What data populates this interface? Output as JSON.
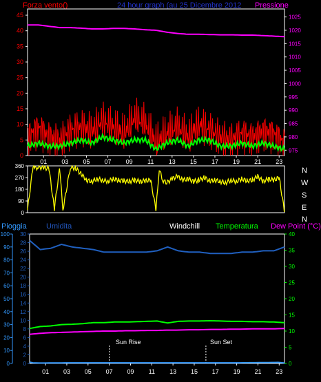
{
  "header": {
    "left": "Forza vento()",
    "center": "24 hour graph (au   25 Dicembre 2012",
    "right": "Pressione"
  },
  "legend": {
    "pioggia": "Pioggia",
    "umidita": "Umidita",
    "windchill": "Windchill",
    "temperatura": "Temperatura",
    "dewpoint": "Dew Point (°C)"
  },
  "compass": [
    "N",
    "W",
    "S",
    "E",
    "N"
  ],
  "annotations": {
    "sunrise": "Sun Rise",
    "sunset": "Sun Set"
  },
  "colors": {
    "wind": "#ff0000",
    "wind_avg": "#00ff00",
    "pressure": "#ff00ff",
    "direction": "#ffff00",
    "humidity": "#2060c0",
    "temperature": "#00ff00",
    "dewpoint": "#ff00ff",
    "rain": "#3399ff",
    "axis_text_left": "#ff0000",
    "axis_text_right": "#ff00ff",
    "frame": "#ffffff"
  },
  "chart_data": [
    {
      "type": "line",
      "id": "wind",
      "x_ticks": [
        "01",
        "03",
        "05",
        "07",
        "09",
        "11",
        "13",
        "15",
        "17",
        "19",
        "21",
        "23"
      ],
      "y_left_ticks": [
        "0",
        "5",
        "10",
        "15",
        "20",
        "25",
        "30",
        "35",
        "40",
        "45"
      ],
      "y_left_lim": [
        0,
        47
      ],
      "y_right_ticks": [
        "975",
        "980",
        "985",
        "990",
        "995",
        "1000",
        "1005",
        "1010",
        "1015",
        "1020",
        "1025"
      ],
      "y_right_lim": [
        973,
        1028
      ],
      "x_range_hours": [
        0,
        24
      ],
      "series": [
        {
          "name": "Forza vento()",
          "axis": "left",
          "hours": [
            0,
            1,
            2,
            3,
            4,
            5,
            6,
            7,
            8,
            9,
            10,
            11,
            12,
            13,
            14,
            15,
            16,
            17,
            18,
            19,
            20,
            21,
            22,
            23,
            24
          ],
          "values": [
            6,
            9,
            6,
            5,
            8,
            9,
            8,
            11,
            9,
            7,
            12,
            10,
            4,
            7,
            9,
            6,
            10,
            8,
            6,
            5,
            7,
            6,
            8,
            7,
            4
          ]
        },
        {
          "name": "",
          "axis": "left",
          "hours": [
            0,
            1,
            2,
            3,
            4,
            5,
            6,
            7,
            8,
            9,
            10,
            11,
            12,
            13,
            14,
            15,
            16,
            17,
            18,
            19,
            20,
            21,
            22,
            23,
            24
          ],
          "values": [
            3,
            4,
            3,
            3,
            4,
            5,
            4,
            6,
            5,
            4,
            5,
            5,
            2,
            4,
            5,
            3,
            5,
            5,
            3,
            3,
            4,
            3,
            4,
            3,
            2
          ]
        },
        {
          "name": "Pressione",
          "axis": "right",
          "hours": [
            0,
            1,
            2,
            3,
            4,
            5,
            6,
            7,
            8,
            9,
            10,
            11,
            12,
            13,
            14,
            15,
            16,
            17,
            18,
            19,
            20,
            21,
            22,
            23,
            24
          ],
          "values": [
            1022,
            1022,
            1021.5,
            1021,
            1021,
            1020.8,
            1020.5,
            1020.5,
            1020.7,
            1020.7,
            1020.5,
            1020.2,
            1020,
            1019.3,
            1018.8,
            1018.5,
            1018.5,
            1018.4,
            1018.3,
            1018.3,
            1018.2,
            1018.2,
            1018,
            1017.8,
            1017.6
          ]
        }
      ]
    },
    {
      "type": "line",
      "id": "direction",
      "x_range_hours": [
        0,
        24
      ],
      "y_ticks": [
        "0",
        "90",
        "180",
        "270",
        "360"
      ],
      "y_lim": [
        0,
        360
      ],
      "series": [
        {
          "name": "",
          "hours": [
            0,
            0.5,
            0.7,
            1,
            1.5,
            2,
            2.5,
            3,
            3.3,
            4,
            4.5,
            5,
            5.5,
            6,
            6.5,
            7,
            7.5,
            8,
            8.5,
            9,
            9.5,
            10,
            10.5,
            11,
            11.5,
            12,
            12.3,
            12.6,
            13,
            13.5,
            14,
            14.5,
            15,
            15.5,
            16,
            16.5,
            17,
            17.5,
            18,
            18.5,
            19,
            19.5,
            20,
            20.5,
            21,
            21.5,
            22,
            22.5,
            23,
            23.5,
            24
          ],
          "values": [
            20,
            350,
            340,
            350,
            345,
            340,
            30,
            345,
            20,
            350,
            340,
            300,
            250,
            240,
            260,
            250,
            240,
            260,
            250,
            245,
            240,
            250,
            240,
            245,
            250,
            20,
            340,
            250,
            230,
            260,
            280,
            250,
            260,
            240,
            250,
            270,
            245,
            250,
            240,
            230,
            250,
            240,
            260,
            245,
            250,
            280,
            240,
            260,
            250,
            270,
            10
          ]
        }
      ]
    },
    {
      "type": "line",
      "id": "temperature",
      "x_ticks": [
        "01",
        "03",
        "05",
        "07",
        "09",
        "11",
        "13",
        "15",
        "17",
        "19",
        "21",
        "23"
      ],
      "y_left_ticks": [
        "0",
        "10",
        "20",
        "30",
        "40",
        "50",
        "60",
        "70",
        "80",
        "90",
        "100"
      ],
      "y_left_lim": [
        0,
        100
      ],
      "y_left_ticks_2": [
        "0",
        "2",
        "4",
        "6",
        "8",
        "10",
        "12",
        "14",
        "16",
        "18",
        "20",
        "22",
        "24",
        "26",
        "28",
        "30"
      ],
      "y_left_lim_2": [
        0,
        30
      ],
      "y_right_ticks": [
        "0",
        "5",
        "10",
        "15",
        "20",
        "25",
        "30",
        "35",
        "40"
      ],
      "y_right_lim": [
        0,
        40
      ],
      "x_range_hours": [
        0,
        24
      ],
      "series": [
        {
          "name": "Umidita",
          "axis": "left",
          "hours": [
            0,
            1,
            2,
            3,
            4,
            5,
            6,
            7,
            8,
            9,
            10,
            11,
            12,
            13,
            14,
            15,
            16,
            17,
            18,
            19,
            20,
            21,
            22,
            23,
            24
          ],
          "values": [
            95,
            88,
            89,
            92,
            90,
            89,
            88,
            86,
            86,
            86,
            86,
            86,
            87,
            90,
            87,
            86,
            86,
            85,
            85,
            85,
            86,
            86,
            87,
            87,
            90
          ]
        },
        {
          "name": "Temperatura",
          "axis": "right",
          "hours": [
            0,
            1,
            2,
            3,
            4,
            5,
            6,
            7,
            8,
            9,
            10,
            11,
            12,
            13,
            14,
            15,
            16,
            17,
            18,
            19,
            20,
            21,
            22,
            23,
            24
          ],
          "values": [
            10.8,
            11.4,
            11.6,
            12.0,
            12.1,
            12.3,
            12.6,
            12.6,
            12.8,
            12.8,
            12.9,
            13.0,
            13.1,
            12.5,
            13.0,
            13.1,
            13.1,
            13.2,
            13.1,
            13.0,
            13.0,
            12.9,
            12.9,
            12.8,
            12.6
          ]
        },
        {
          "name": "Dew Point (°C)",
          "axis": "right",
          "hours": [
            0,
            1,
            2,
            3,
            4,
            5,
            6,
            7,
            8,
            9,
            10,
            11,
            12,
            13,
            14,
            15,
            16,
            17,
            18,
            19,
            20,
            21,
            22,
            23,
            24
          ],
          "values": [
            9.0,
            9.3,
            9.5,
            9.6,
            9.7,
            9.8,
            9.9,
            10.0,
            10.0,
            10.1,
            10.1,
            10.2,
            10.2,
            10.3,
            10.3,
            10.4,
            10.4,
            10.5,
            10.5,
            10.6,
            10.6,
            10.7,
            10.7,
            10.7,
            10.8
          ]
        },
        {
          "name": "Pioggia",
          "axis": "left",
          "hours": [
            0,
            0.3,
            1,
            4,
            8,
            12,
            16,
            20,
            23.5,
            24
          ],
          "values": [
            1,
            0.5,
            0.3,
            0.5,
            0.5,
            0.5,
            0.5,
            0.5,
            0.8,
            0.3
          ]
        }
      ],
      "annotation_hours": {
        "sunrise": 7.5,
        "sunset": 16.6
      }
    }
  ]
}
